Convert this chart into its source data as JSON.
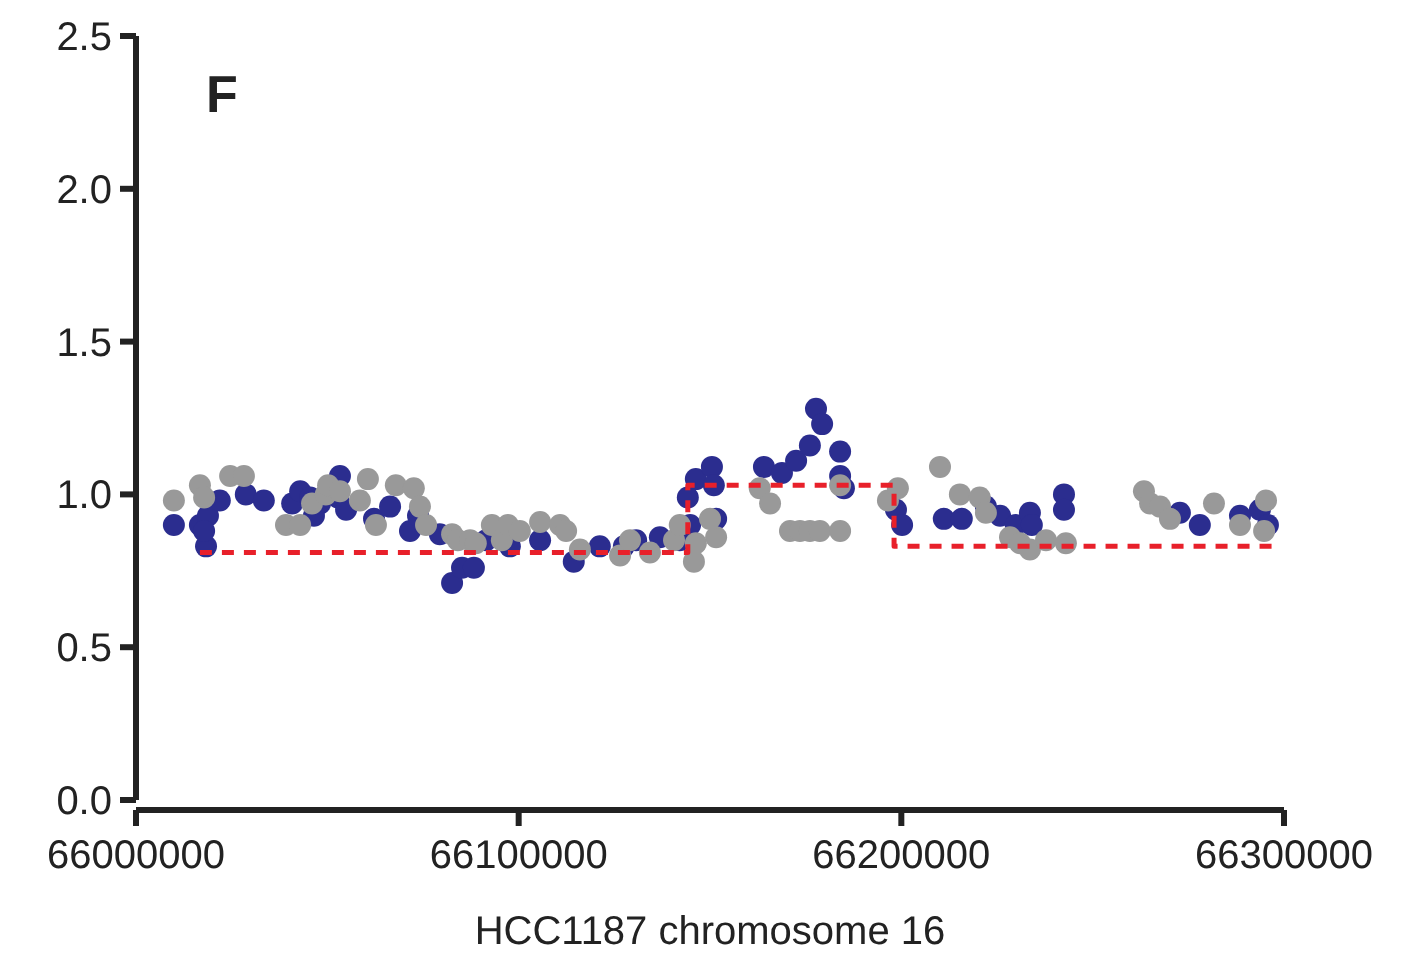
{
  "chart_data": {
    "type": "scatter",
    "xlabel": "HCC1187 chromosome 16",
    "annotations": [
      "F"
    ],
    "xlim": [
      66000000,
      66300000
    ],
    "xticks": [
      66000000,
      66100000,
      66200000,
      66300000
    ],
    "ylim": [
      0,
      2.5
    ],
    "yticks": [
      {
        "value": 0,
        "label": "0.0"
      },
      {
        "value": 0.5,
        "label": "0.5"
      },
      {
        "value": 1,
        "label": "1.0"
      },
      {
        "value": 1.5,
        "label": "1.5"
      },
      {
        "value": 2,
        "label": "2.0"
      },
      {
        "value": 2.5,
        "label": "2.5"
      }
    ],
    "grid": false,
    "marker": "circle",
    "series": [
      {
        "color": "#2b2d8f",
        "x": [
          66009900,
          66016700,
          66018300,
          66018800,
          66017800,
          66021900,
          66028700,
          66033400,
          66040800,
          66042900,
          66045500,
          66048100,
          66046500,
          66053300,
          66052800,
          66054900,
          66062200,
          66066400,
          66071600,
          66073700,
          66079400,
          66082600,
          66085200,
          66088300,
          66091500,
          66097700,
          66105600,
          66114400,
          66121200,
          66127500,
          66130700,
          66136900,
          66142100,
          66144800,
          66144200,
          66146300,
          66150500,
          66151000,
          66151600,
          66164100,
          66168800,
          66172500,
          66176100,
          66177700,
          66179300,
          66184000,
          66184000,
          66185000,
          66198600,
          66200200,
          66211100,
          66215800,
          66222100,
          66225800,
          66229900,
          66233600,
          66234100,
          66242500,
          66242500,
          66272800,
          66278000,
          66288500,
          66293700,
          66295800
        ],
        "values": [
          0.9,
          0.9,
          0.83,
          0.93,
          0.88,
          0.98,
          1.0,
          0.98,
          0.97,
          1.01,
          0.99,
          0.97,
          0.93,
          1.06,
          0.99,
          0.95,
          0.92,
          0.96,
          0.88,
          0.93,
          0.87,
          0.71,
          0.76,
          0.76,
          0.85,
          0.83,
          0.85,
          0.78,
          0.83,
          0.83,
          0.85,
          0.86,
          0.85,
          0.9,
          0.99,
          1.05,
          1.09,
          1.03,
          0.92,
          1.09,
          1.07,
          1.11,
          1.16,
          1.28,
          1.23,
          1.14,
          1.06,
          1.02,
          0.95,
          0.9,
          0.92,
          0.92,
          0.96,
          0.93,
          0.9,
          0.94,
          0.9,
          1.0,
          0.95,
          0.94,
          0.9,
          0.93,
          0.95,
          0.9
        ]
      },
      {
        "color": "#999999",
        "x": [
          66009900,
          66016700,
          66017800,
          66024600,
          66028200,
          66039200,
          66042900,
          66046000,
          66049600,
          66050200,
          66053300,
          66058500,
          66060600,
          66062700,
          66067900,
          66072600,
          66074200,
          66075800,
          66082600,
          66084100,
          66087300,
          66088800,
          66093000,
          66095600,
          66097200,
          66100300,
          66105600,
          66110800,
          66112400,
          66116000,
          66126500,
          66129100,
          66134300,
          66140600,
          66142100,
          66145800,
          66146300,
          66151600,
          66150000,
          66163000,
          66165700,
          66170900,
          66173500,
          66176100,
          66178700,
          66184000,
          66184000,
          66196500,
          66199100,
          66210100,
          66215300,
          66220500,
          66222100,
          66228400,
          66231000,
          66233600,
          66237800,
          66243000,
          66263400,
          66265000,
          66267600,
          66270200,
          66281700,
          66288500,
          66294800,
          66295300
        ],
        "values": [
          0.98,
          1.03,
          0.99,
          1.06,
          1.06,
          0.9,
          0.9,
          0.97,
          1.0,
          1.03,
          1.01,
          0.98,
          1.05,
          0.9,
          1.03,
          1.02,
          0.96,
          0.9,
          0.87,
          0.85,
          0.85,
          0.84,
          0.9,
          0.85,
          0.9,
          0.88,
          0.91,
          0.9,
          0.88,
          0.82,
          0.8,
          0.85,
          0.81,
          0.85,
          0.9,
          0.78,
          0.84,
          0.86,
          0.92,
          1.02,
          0.97,
          0.88,
          0.88,
          0.88,
          0.88,
          0.88,
          1.03,
          0.98,
          1.02,
          1.09,
          1.0,
          0.99,
          0.94,
          0.86,
          0.84,
          0.82,
          0.85,
          0.84,
          1.01,
          0.97,
          0.96,
          0.92,
          0.97,
          0.9,
          0.88,
          0.98
        ]
      },
      {
        "type": "line",
        "color": "#e8202a",
        "line_style": "dashed",
        "marker": "none",
        "x": [
          66016700,
          66144200,
          66144200,
          66198100,
          66198100,
          66296800
        ],
        "values": [
          0.81,
          0.81,
          1.03,
          1.03,
          0.83,
          0.83
        ]
      }
    ]
  }
}
